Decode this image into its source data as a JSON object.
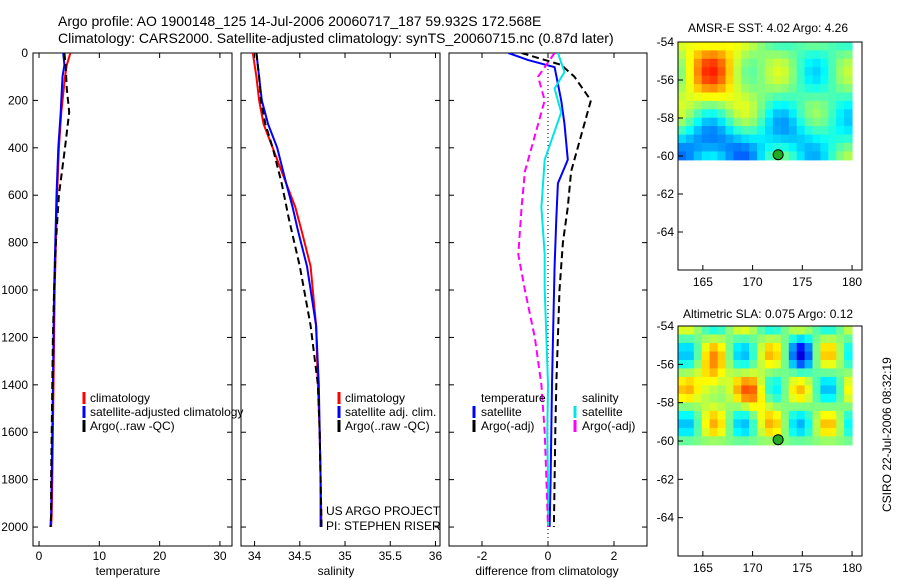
{
  "header": {
    "title_line1": "Argo profile: AO 1900148_125 14-Jul-2006 20060717_187 59.932S 172.568E",
    "title_line2": "Climatology: CARS2000. Satellite-adjusted climatology: synTS_20060715.nc (0.87d later)"
  },
  "side_stamp": "CSIRO 22-Jul-2006 08:32:19",
  "colors": {
    "climatology": "#ff0000",
    "satellite": "#0000ff",
    "argo": "#000000",
    "sal_satellite": "#00e5e5",
    "sal_argo": "#ff00ff"
  },
  "chart_data": [
    {
      "type": "line",
      "panel": "temperature",
      "xlabel": "temperature",
      "ylabel": "",
      "xlim": [
        -1,
        32
      ],
      "ylim": [
        2080,
        0
      ],
      "y_reversed": true,
      "xticks": [
        0,
        10,
        20,
        30
      ],
      "yticks": [
        0,
        200,
        400,
        600,
        800,
        1000,
        1200,
        1400,
        1600,
        1800,
        2000
      ],
      "legend": [
        "climatology",
        "satellite-adjusted climatology",
        "Argo(..raw -QC)"
      ],
      "series": [
        {
          "name": "climatology",
          "color": "#ff0000",
          "dash": false,
          "x": [
            5.2,
            4.6,
            4.3,
            3.7,
            3.3,
            3.0,
            2.8,
            2.6,
            2.5,
            2.4,
            2.3,
            2.2,
            2.1,
            2.0
          ],
          "y": [
            0,
            50,
            100,
            250,
            400,
            600,
            800,
            1000,
            1200,
            1400,
            1600,
            1800,
            1950,
            2000
          ]
        },
        {
          "name": "satellite-adjusted climatology",
          "color": "#0000ff",
          "dash": false,
          "x": [
            4.0,
            4.2,
            3.9,
            3.6,
            3.2,
            2.9,
            2.7,
            2.5,
            2.4,
            2.3,
            2.2,
            2.1,
            2.0,
            1.9
          ],
          "y": [
            0,
            50,
            100,
            250,
            400,
            600,
            800,
            1000,
            1200,
            1400,
            1600,
            1800,
            1950,
            2000
          ]
        },
        {
          "name": "Argo(..raw -QC)",
          "color": "#000000",
          "dash": true,
          "x": [
            4.2,
            4.4,
            4.6,
            5.0,
            4.3,
            3.3,
            2.8,
            2.5,
            2.3,
            2.2,
            2.1,
            2.0,
            2.0,
            1.9
          ],
          "y": [
            0,
            50,
            150,
            250,
            400,
            600,
            800,
            1000,
            1200,
            1400,
            1600,
            1800,
            1950,
            2000
          ]
        }
      ]
    },
    {
      "type": "line",
      "panel": "salinity",
      "xlabel": "salinity",
      "ylabel": "",
      "xlim": [
        33.85,
        36.05
      ],
      "ylim": [
        2080,
        0
      ],
      "y_reversed": true,
      "xticks": [
        34,
        34.5,
        35,
        35.5,
        36
      ],
      "legend": [
        "climatology",
        "satellite adj. clim.",
        "Argo(..raw -QC)"
      ],
      "annotations": [
        "US ARGO PROJECT",
        "PI: STEPHEN RISER"
      ],
      "series": [
        {
          "name": "climatology",
          "color": "#ff0000",
          "dash": false,
          "x": [
            33.98,
            34.02,
            34.05,
            34.1,
            34.2,
            34.35,
            34.45,
            34.52,
            34.62,
            34.68,
            34.7,
            34.72,
            34.73,
            34.74
          ],
          "y": [
            0,
            100,
            200,
            300,
            400,
            550,
            650,
            750,
            900,
            1150,
            1400,
            1600,
            1800,
            2000
          ]
        },
        {
          "name": "satellite adj. clim.",
          "color": "#0000ff",
          "dash": false,
          "x": [
            34.02,
            34.05,
            34.08,
            34.15,
            34.25,
            34.35,
            34.42,
            34.48,
            34.58,
            34.68,
            34.71,
            34.72,
            34.73,
            34.73
          ],
          "y": [
            0,
            100,
            200,
            300,
            400,
            550,
            650,
            750,
            900,
            1150,
            1400,
            1600,
            1800,
            2000
          ]
        },
        {
          "name": "Argo(..raw -QC)",
          "color": "#000000",
          "dash": true,
          "x": [
            34.02,
            34.05,
            34.07,
            34.12,
            34.2,
            34.3,
            34.38,
            34.5,
            34.62,
            34.7,
            34.72,
            34.73,
            34.74
          ],
          "y": [
            0,
            100,
            200,
            300,
            400,
            550,
            700,
            900,
            1150,
            1400,
            1600,
            1800,
            2000
          ]
        }
      ]
    },
    {
      "type": "line",
      "panel": "difference",
      "xlabel": "difference from climatology",
      "ylabel": "",
      "xlim": [
        -3,
        3
      ],
      "ylim": [
        2080,
        0
      ],
      "y_reversed": true,
      "xticks": [
        -2,
        0,
        2
      ],
      "legend": [
        "temperature",
        "satellite",
        "Argo(-adj)",
        "salinity",
        "satellite",
        "Argo(-adj)"
      ],
      "series": [
        {
          "name": "temperature satellite",
          "color": "#0000ff",
          "dash": false,
          "x": [
            -1.2,
            -0.6,
            0.2,
            0.4,
            0.5,
            0.6,
            0.3,
            0.25,
            0.2,
            0.15,
            0.12,
            0.1,
            0.08,
            0.05
          ],
          "y": [
            0,
            30,
            60,
            200,
            300,
            450,
            550,
            700,
            900,
            1200,
            1400,
            1600,
            1800,
            2000
          ]
        },
        {
          "name": "temperature Argo(-adj)",
          "color": "#000000",
          "dash": true,
          "x": [
            -0.8,
            0.4,
            0.8,
            1.3,
            1.0,
            0.7,
            0.6,
            0.45,
            0.35,
            0.3,
            0.25,
            0.22,
            0.2,
            0.18
          ],
          "y": [
            0,
            50,
            100,
            200,
            350,
            500,
            650,
            800,
            1000,
            1200,
            1400,
            1600,
            1800,
            2000
          ]
        },
        {
          "name": "salinity satellite",
          "color": "#00e5e5",
          "dash": false,
          "x": [
            0.3,
            0.5,
            0.2,
            0.4,
            -0.1,
            -0.2,
            -0.1,
            -0.1,
            -0.05,
            0.0,
            -0.02,
            0.0,
            0.0
          ],
          "y": [
            0,
            80,
            150,
            250,
            450,
            650,
            850,
            1000,
            1200,
            1400,
            1600,
            1800,
            2000
          ]
        },
        {
          "name": "salinity Argo(-adj)",
          "color": "#ff00ff",
          "dash": true,
          "x": [
            0.2,
            -0.3,
            -0.1,
            -0.3,
            -0.7,
            -0.8,
            -0.9,
            -0.7,
            -0.4,
            -0.2,
            -0.1,
            -0.05,
            0.0
          ],
          "y": [
            0,
            100,
            200,
            300,
            500,
            650,
            850,
            1000,
            1200,
            1400,
            1600,
            1800,
            2000
          ]
        }
      ]
    },
    {
      "type": "heatmap",
      "panel": "sst_map",
      "title": "AMSR-E SST: 4.02 Argo: 4.26",
      "xlim": [
        162.5,
        181
      ],
      "ylim": [
        -66,
        -54
      ],
      "xticks": [
        165,
        170,
        175,
        180
      ],
      "yticks": [
        -54,
        -56,
        -58,
        -60,
        -62,
        -64
      ],
      "data_extent": {
        "lon": [
          162.5,
          180
        ],
        "lat": [
          -60.2,
          -54
        ]
      },
      "marker": {
        "lon": 172.568,
        "lat": -59.932
      }
    },
    {
      "type": "heatmap",
      "panel": "sla_map",
      "title": "Altimetric SLA: 0.075 Argo: 0.12",
      "xlim": [
        162.5,
        181
      ],
      "ylim": [
        -66,
        -54
      ],
      "xticks": [
        165,
        170,
        175,
        180
      ],
      "yticks": [
        -54,
        -56,
        -58,
        -60,
        -62,
        -64
      ],
      "data_extent": {
        "lon": [
          162.5,
          180
        ],
        "lat": [
          -60.2,
          -54
        ]
      },
      "marker": {
        "lon": 172.568,
        "lat": -59.932
      }
    }
  ]
}
